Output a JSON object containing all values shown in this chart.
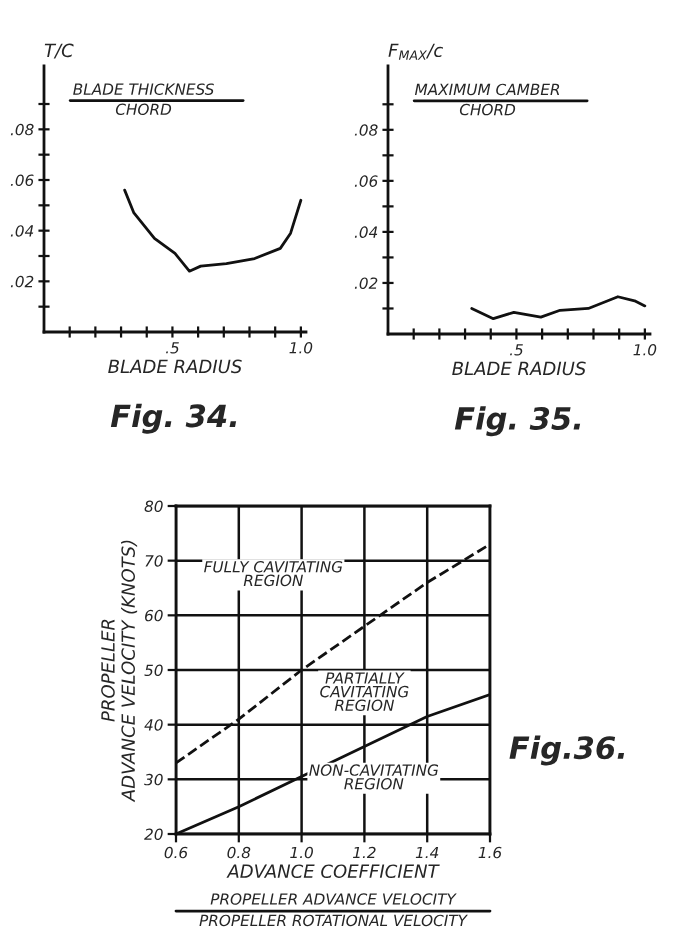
{
  "chart_data": [
    {
      "type": "line",
      "title": "Fig. 34.",
      "ylabel": "T/C",
      "xlabel": "BLADE RADIUS",
      "annotations": [
        "BLADE THICKNESS",
        "CHORD"
      ],
      "x": [
        0.314,
        0.35,
        0.43,
        0.51,
        0.566,
        0.61,
        0.71,
        0.82,
        0.92,
        0.96,
        1.0
      ],
      "series": [
        {
          "color": "#111111",
          "values": [
            0.056,
            0.047,
            0.037,
            0.031,
            0.024,
            0.026,
            0.027,
            0.029,
            0.033,
            0.039,
            0.052
          ]
        }
      ],
      "xlim": [
        0,
        1.02
      ],
      "ylim": [
        0,
        0.105
      ],
      "xticks": [
        {
          "value": 0.1,
          "label": null
        },
        {
          "value": 0.2,
          "label": null
        },
        {
          "value": 0.3,
          "label": null
        },
        {
          "value": 0.4,
          "label": null
        },
        {
          "value": 0.5,
          "label": ".5"
        },
        {
          "value": 0.6,
          "label": null
        },
        {
          "value": 0.7,
          "label": null
        },
        {
          "value": 0.8,
          "label": null
        },
        {
          "value": 0.9,
          "label": null
        },
        {
          "value": 1.0,
          "label": "1.0"
        }
      ],
      "yticks": [
        {
          "value": 0.01,
          "label": null
        },
        {
          "value": 0.02,
          "label": ".02"
        },
        {
          "value": 0.03,
          "label": null
        },
        {
          "value": 0.04,
          "label": ".04"
        },
        {
          "value": 0.05,
          "label": null
        },
        {
          "value": 0.06,
          "label": ".06"
        },
        {
          "value": 0.07,
          "label": null
        },
        {
          "value": 0.08,
          "label": ".08"
        },
        {
          "value": 0.09,
          "label": null
        }
      ],
      "grid": false,
      "legend": false,
      "marker": "none",
      "line_style": "solid"
    },
    {
      "type": "line",
      "title": "Fig. 35.",
      "ylabel": "F$_{MAX}$/c",
      "xlabel": "BLADE RADIUS",
      "annotations": [
        "MAXIMUM CAMBER",
        "CHORD"
      ],
      "x": [
        0.326,
        0.41,
        0.49,
        0.595,
        0.67,
        0.78,
        0.895,
        0.96,
        1.0
      ],
      "series": [
        {
          "color": "#111111",
          "values": [
            0.01,
            0.006,
            0.0085,
            0.0066,
            0.0093,
            0.01,
            0.0146,
            0.013,
            0.011
          ]
        }
      ],
      "xlim": [
        0,
        1.02
      ],
      "ylim": [
        0,
        0.105
      ],
      "xticks": [
        {
          "value": 0.1,
          "label": null
        },
        {
          "value": 0.2,
          "label": null
        },
        {
          "value": 0.3,
          "label": null
        },
        {
          "value": 0.4,
          "label": null
        },
        {
          "value": 0.5,
          "label": ".5"
        },
        {
          "value": 0.6,
          "label": null
        },
        {
          "value": 0.7,
          "label": null
        },
        {
          "value": 0.8,
          "label": null
        },
        {
          "value": 0.9,
          "label": null
        },
        {
          "value": 1.0,
          "label": "1.0"
        }
      ],
      "yticks": [
        {
          "value": 0.01,
          "label": null
        },
        {
          "value": 0.02,
          "label": ".02"
        },
        {
          "value": 0.03,
          "label": null
        },
        {
          "value": 0.04,
          "label": ".04"
        },
        {
          "value": 0.05,
          "label": null
        },
        {
          "value": 0.06,
          "label": ".06"
        },
        {
          "value": 0.07,
          "label": null
        },
        {
          "value": 0.08,
          "label": ".08"
        },
        {
          "value": 0.09,
          "label": null
        }
      ],
      "grid": false,
      "legend": false,
      "marker": "none",
      "line_style": "solid"
    },
    {
      "type": "line",
      "title": "Fig.36.",
      "ylabel": "PROPELLER\nADVANCE VELOCITY (KNOTS)",
      "xlabel": "ADVANCE COEFFICIENT",
      "annotations": [
        "PROPELLER ADVANCE VELOCITY",
        "PROPELLER ROTATIONAL VELOCITY",
        "FULLY CAVITATING\nREGION",
        "PARTIALLY\nCAVITATING\nREGION",
        "NON-CAVITATING\nREGION"
      ],
      "x": [
        0.6,
        0.8,
        1.0,
        1.2,
        1.4,
        1.6
      ],
      "series": [
        {
          "color": "#111111",
          "line_style": "dashed",
          "values": [
            33,
            41,
            50,
            58,
            66,
            73
          ]
        },
        {
          "color": "#111111",
          "line_style": "solid",
          "values": [
            20,
            25,
            30.5,
            36,
            41.5,
            45.5
          ]
        }
      ],
      "xlim": [
        0.6,
        1.6
      ],
      "ylim": [
        20,
        80
      ],
      "xticks": [
        0.6,
        0.8,
        {
          "value": 1.0,
          "label": "1.0"
        },
        1.2,
        1.4,
        1.6
      ],
      "yticks": [
        20,
        30,
        40,
        50,
        60,
        70,
        80
      ],
      "grid": true,
      "legend": false,
      "marker": "none"
    }
  ]
}
